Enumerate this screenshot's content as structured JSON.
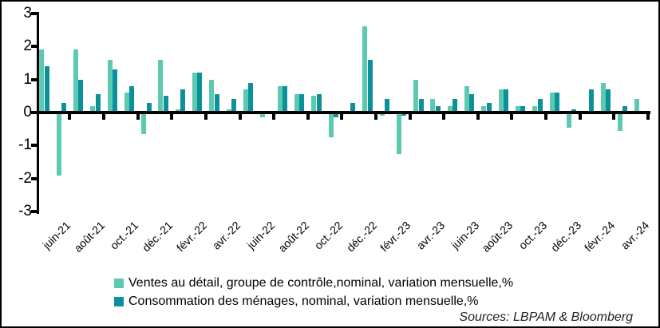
{
  "figure": {
    "background": "#ffffff",
    "border_color": "#000000",
    "axis_color": "#000000"
  },
  "legend": {
    "items": [
      {
        "label": "Ventes au détail, groupe de contrôle,nominal, variation mensuelle,%",
        "color": "#5CC9B1"
      },
      {
        "label": "Consommation des ménages, nominal, variation mensuelle,%",
        "color": "#0B919B"
      }
    ]
  },
  "source_note": "Sources: LBPAM & Bloomberg",
  "chart_data": {
    "type": "bar",
    "title": "",
    "xlabel": "",
    "ylabel": "",
    "ylim": [
      -3,
      3
    ],
    "yticks": [
      3,
      2,
      1,
      0,
      -1,
      -2,
      -3
    ],
    "grid": false,
    "legend_position": "bottom-left",
    "categories": [
      "juin-21",
      "juil-21",
      "août-21",
      "sept-21",
      "oct-21",
      "nov-21",
      "déc-21",
      "janv-22",
      "févr-22",
      "mars-22",
      "avr-22",
      "mai-22",
      "juin-22",
      "juil-22",
      "août-22",
      "sept-22",
      "oct-22",
      "nov-22",
      "déc-22",
      "janv-23",
      "févr-23",
      "mars-23",
      "avr-23",
      "mai-23",
      "juin-23",
      "juil-23",
      "août-23",
      "sept-23",
      "oct-23",
      "nov-23",
      "déc-23",
      "janv-24",
      "févr-24",
      "mars-24",
      "avr-24",
      "mai-24"
    ],
    "visible_x_tick_labels": [
      "juin-21",
      "août-21",
      "oct.-21",
      "déc.-21",
      "févr.-22",
      "avr.-22",
      "juin-22",
      "août-22",
      "oct.-22",
      "déc.-22",
      "févr.-23",
      "avr.-23",
      "juin-23",
      "août-23",
      "oct.-23",
      "déc.-23",
      "févr.-24",
      "avr.-24"
    ],
    "series": [
      {
        "name": "Ventes au détail, groupe de contrôle,nominal, variation mensuelle,%",
        "color": "#5CC9B1",
        "values": [
          1.9,
          -1.9,
          1.9,
          0.2,
          1.6,
          0.6,
          -0.65,
          1.6,
          0.1,
          1.2,
          1.0,
          0.1,
          0.7,
          -0.15,
          0.8,
          0.55,
          0.5,
          -0.75,
          0,
          2.6,
          -0.1,
          -1.25,
          1.0,
          0.4,
          0.2,
          0.8,
          0.2,
          0.7,
          0.2,
          0.2,
          0.6,
          -0.45,
          0,
          0.9,
          -0.55,
          0.4
        ]
      },
      {
        "name": "Consommation des ménages, nominal, variation mensuelle,%",
        "color": "#0B919B",
        "values": [
          1.4,
          0.3,
          1.0,
          0.55,
          1.3,
          0.8,
          0.3,
          0.5,
          0.7,
          1.2,
          0.55,
          0.4,
          0.9,
          0,
          0.8,
          0.55,
          0.55,
          -0.15,
          0.3,
          1.6,
          0.4,
          -0.1,
          0.4,
          0.2,
          0.4,
          0.55,
          0.3,
          0.7,
          0.2,
          0.4,
          0.6,
          0.1,
          0.7,
          0.7,
          0.2,
          0
        ]
      }
    ]
  }
}
